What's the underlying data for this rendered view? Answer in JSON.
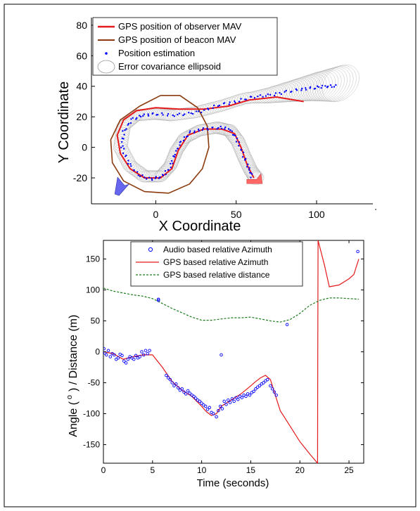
{
  "chart_data": [
    {
      "type": "line",
      "xlabel": "X Coordinate",
      "ylabel": "Y Coordinate",
      "xlim": [
        -40,
        135
      ],
      "ylim": [
        -37,
        85
      ],
      "xticks": [
        "0",
        "50",
        "100"
      ],
      "xtick_values": [
        0,
        50,
        100
      ],
      "yticks": [
        "80",
        "60",
        "40",
        "20",
        "0",
        "-20"
      ],
      "ytick_values": [
        80,
        60,
        40,
        20,
        0,
        -20
      ],
      "legend_position": "top-left",
      "legend": [
        {
          "label": "GPS position of observer MAV",
          "color": "#e41a1c",
          "marker": "line"
        },
        {
          "label": "GPS position of beacon MAV",
          "color": "#8b3a0e",
          "marker": "line"
        },
        {
          "label": "Position estimation",
          "color": "#0000ff",
          "marker": "dot"
        },
        {
          "label": "Error covariance ellipsoid",
          "color": "#999999",
          "marker": "ellipse"
        }
      ],
      "series": [
        {
          "name": "GPS position of observer MAV",
          "color": "#e41a1c",
          "points": [
            [
              92,
              30
            ],
            [
              75,
              33
            ],
            [
              58,
              31
            ],
            [
              45,
              27
            ],
            [
              30,
              25
            ],
            [
              15,
              25
            ],
            [
              0,
              26
            ],
            [
              -12,
              24
            ],
            [
              -20,
              18
            ],
            [
              -24,
              8
            ],
            [
              -22,
              -4
            ],
            [
              -16,
              -14
            ],
            [
              -7,
              -20
            ],
            [
              3,
              -20
            ],
            [
              10,
              -14
            ],
            [
              14,
              -2
            ],
            [
              20,
              8
            ],
            [
              30,
              12
            ],
            [
              41,
              12
            ],
            [
              49,
              9
            ],
            [
              53,
              0
            ],
            [
              57,
              -12
            ],
            [
              61,
              -20
            ]
          ]
        },
        {
          "name": "GPS position of beacon MAV",
          "color": "#8b3a0e",
          "points": [
            [
              -10,
              27
            ],
            [
              3,
              34
            ],
            [
              15,
              34
            ],
            [
              26,
              26
            ],
            [
              32,
              14
            ],
            [
              33,
              0
            ],
            [
              29,
              -14
            ],
            [
              21,
              -24
            ],
            [
              8,
              -30
            ],
            [
              -7,
              -29
            ],
            [
              -20,
              -22
            ],
            [
              -27,
              -10
            ],
            [
              -28,
              5
            ],
            [
              -22,
              18
            ],
            [
              -10,
              27
            ]
          ]
        },
        {
          "name": "Position estimation",
          "color": "#0000ff",
          "points": [
            [
              112,
              40
            ],
            [
              105,
              40
            ],
            [
              98,
              39
            ],
            [
              90,
              38
            ],
            [
              80,
              36
            ],
            [
              70,
              34
            ],
            [
              60,
              33
            ],
            [
              50,
              30
            ],
            [
              40,
              28
            ],
            [
              30,
              24
            ],
            [
              20,
              22
            ],
            [
              10,
              21
            ],
            [
              0,
              22
            ],
            [
              -8,
              21
            ],
            [
              -15,
              18
            ],
            [
              -20,
              10
            ],
            [
              -21,
              0
            ],
            [
              -17,
              -10
            ],
            [
              -11,
              -18
            ],
            [
              -3,
              -21
            ],
            [
              4,
              -19
            ],
            [
              9,
              -13
            ],
            [
              12,
              -4
            ],
            [
              16,
              4
            ],
            [
              22,
              10
            ],
            [
              30,
              12
            ],
            [
              39,
              13
            ],
            [
              46,
              12
            ],
            [
              50,
              6
            ],
            [
              54,
              -4
            ],
            [
              58,
              -14
            ],
            [
              60,
              -20
            ]
          ]
        }
      ],
      "ellipse_envelope": {
        "color": "#aaaaaa",
        "points": [
          [
            115,
            42
          ],
          [
            100,
            40
          ],
          [
            85,
            37
          ],
          [
            70,
            34
          ],
          [
            55,
            32
          ],
          [
            40,
            27
          ],
          [
            25,
            23
          ],
          [
            10,
            21
          ],
          [
            0,
            22
          ],
          [
            -12,
            21
          ],
          [
            -20,
            14
          ],
          [
            -22,
            0
          ],
          [
            -16,
            -12
          ],
          [
            -7,
            -19
          ],
          [
            3,
            -19
          ],
          [
            9,
            -12
          ],
          [
            13,
            -2
          ],
          [
            18,
            6
          ],
          [
            27,
            11
          ],
          [
            38,
            13
          ],
          [
            46,
            11
          ],
          [
            51,
            4
          ],
          [
            55,
            -6
          ],
          [
            59,
            -15
          ],
          [
            63,
            -21
          ]
        ]
      },
      "markers": [
        {
          "name": "observer-marker",
          "color": "#ff6666",
          "at": [
            61,
            -21
          ]
        },
        {
          "name": "beacon-marker",
          "color": "#6666ee",
          "at": [
            -22,
            -26
          ]
        }
      ]
    },
    {
      "type": "line",
      "xlabel": "Time (seconds)",
      "ylabel": "Angle ( o ) / Distance (m)",
      "ylabel_main": "Angle (",
      "ylabel_super": "o",
      "ylabel_tail": ") / Distance (m)",
      "xlim": [
        0,
        26.5
      ],
      "ylim": [
        -180,
        180
      ],
      "xticks": [
        "0",
        "5",
        "10",
        "15",
        "20",
        "25"
      ],
      "xtick_values": [
        0,
        5,
        10,
        15,
        20,
        25
      ],
      "yticks": [
        "150",
        "100",
        "50",
        "0",
        "-50",
        "-100",
        "-150"
      ],
      "ytick_values": [
        150,
        100,
        50,
        0,
        -50,
        -100,
        -150
      ],
      "legend_position": "top-center",
      "legend": [
        {
          "label": "Audio based relative Azimuth",
          "color": "#0000ff",
          "marker": "circle"
        },
        {
          "label": "GPS based relative Azimuth",
          "color": "#e41a1c",
          "marker": "line"
        },
        {
          "label": "GPS based relative distance",
          "color": "#1a7a1a",
          "marker": "dash"
        }
      ],
      "series": [
        {
          "name": "GPS based relative Azimuth",
          "color": "#e41a1c",
          "x": [
            0,
            1,
            2,
            3,
            4,
            5,
            6,
            7,
            8,
            9,
            10,
            10.5,
            11,
            11.5,
            12,
            13,
            14,
            15,
            15.5,
            16,
            16.5,
            17,
            17.5,
            18,
            19,
            20,
            21,
            21.8,
            21.82,
            21.85,
            22.5,
            23,
            24,
            25,
            25.5,
            26
          ],
          "y": [
            0,
            -3,
            -12,
            -8,
            -5,
            -5,
            -25,
            -48,
            -62,
            -72,
            -88,
            -97,
            -103,
            -100,
            -88,
            -78,
            -68,
            -55,
            -48,
            -42,
            -38,
            -45,
            -70,
            -95,
            -120,
            -145,
            -165,
            -180,
            0,
            180,
            140,
            105,
            108,
            118,
            125,
            150
          ]
        },
        {
          "name": "GPS based relative distance",
          "color": "#1a7a1a",
          "x": [
            0,
            1,
            2,
            3,
            4,
            5,
            6,
            7,
            8,
            9,
            10,
            11,
            12,
            13,
            14,
            15,
            16,
            17,
            18,
            19,
            20,
            21,
            22,
            23,
            24,
            25,
            26
          ],
          "y": [
            103,
            98,
            95,
            92,
            90,
            86,
            78,
            70,
            63,
            56,
            51,
            51,
            53,
            55,
            55,
            56,
            53,
            50,
            48,
            52,
            62,
            75,
            83,
            87,
            87,
            86,
            85
          ]
        },
        {
          "name": "Audio based relative Azimuth",
          "color": "#0000ff",
          "x": [
            0.05,
            0.15,
            0.3,
            0.5,
            0.7,
            0.9,
            1.1,
            1.3,
            1.5,
            1.7,
            1.9,
            2.1,
            2.3,
            2.5,
            2.7,
            2.9,
            3.1,
            3.3,
            3.5,
            3.7,
            3.9,
            4.1,
            4.3,
            4.5,
            4.7,
            5.6,
            6.4,
            6.6,
            6.8,
            7.0,
            7.2,
            7.4,
            7.6,
            7.8,
            8.0,
            8.2,
            8.4,
            8.6,
            8.8,
            9.0,
            9.2,
            9.4,
            9.6,
            9.8,
            10.0,
            10.2,
            10.4,
            10.6,
            10.8,
            11.0,
            11.2,
            11.5,
            11.7,
            11.9,
            12.1,
            12.3,
            12.5,
            12.7,
            12.9,
            13.1,
            13.3,
            13.5,
            13.7,
            13.9,
            14.1,
            14.3,
            14.5,
            14.7,
            14.9,
            15.1,
            15.3,
            15.5,
            15.7,
            15.9,
            16.1,
            16.3,
            16.5,
            16.7,
            17.0,
            17.2,
            17.4,
            17.6,
            18.7,
            25.9
          ],
          "y": [
            5,
            -2,
            -5,
            2,
            -8,
            -3,
            -5,
            -12,
            -10,
            -4,
            -6,
            -15,
            -18,
            -12,
            -8,
            -10,
            -12,
            -6,
            -10,
            -8,
            0,
            -5,
            2,
            -3,
            2,
            83,
            -38,
            -42,
            -45,
            -50,
            -55,
            -52,
            -58,
            -62,
            -60,
            -65,
            -68,
            -63,
            -67,
            -70,
            -72,
            -75,
            -78,
            -80,
            -83,
            -86,
            -88,
            -93,
            -90,
            -98,
            -100,
            -105,
            -95,
            -88,
            -92,
            -80,
            -85,
            -78,
            -82,
            -76,
            -80,
            -74,
            -77,
            -72,
            -74,
            -70,
            -72,
            -68,
            -70,
            -66,
            -64,
            -60,
            -57,
            -55,
            -52,
            -50,
            -47,
            -45,
            -55,
            -60,
            -65,
            -70,
            44,
            162
          ]
        },
        {
          "name": "Audio based relative Azimuth (outliers)",
          "color": "#0000ff",
          "x": [
            12.0,
            5.6
          ],
          "y": [
            -5,
            85
          ]
        }
      ]
    }
  ]
}
